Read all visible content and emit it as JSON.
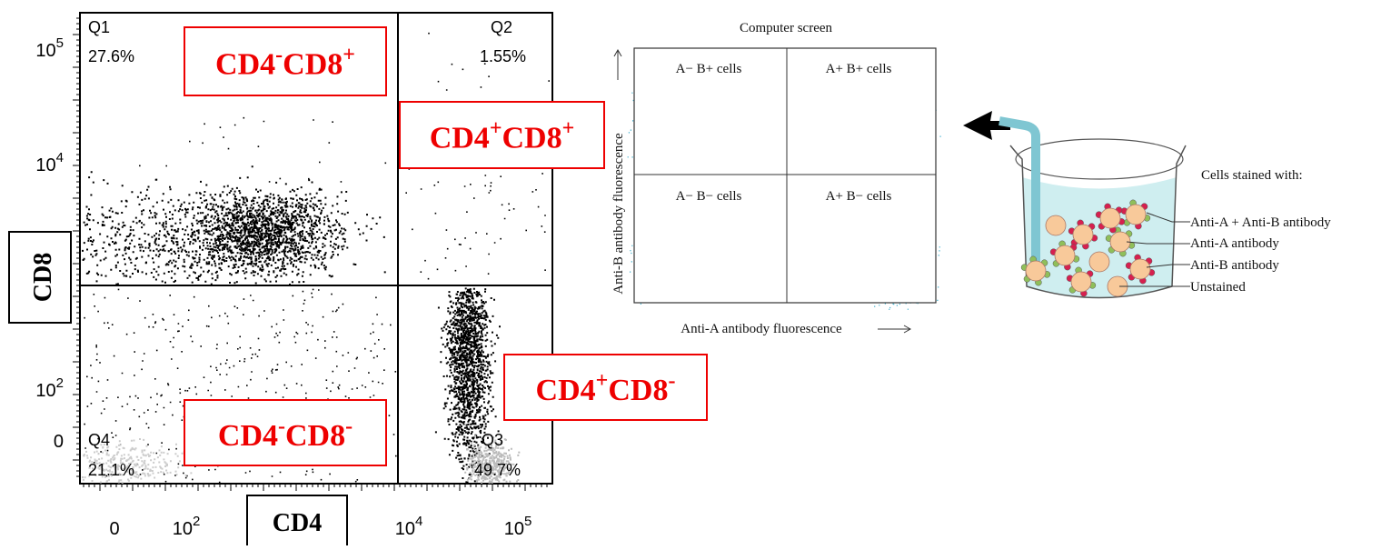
{
  "plot": {
    "quadrants": [
      {
        "name": "Q1",
        "percent": "27.6%"
      },
      {
        "name": "Q2",
        "percent": "1.55%"
      },
      {
        "name": "Q3",
        "percent": "49.7%"
      },
      {
        "name": "Q4",
        "percent": "21.1%"
      }
    ],
    "y_ticks": [
      {
        "base": "10",
        "exp": "5"
      },
      {
        "base": "10",
        "exp": "4"
      },
      {
        "base": "10",
        "exp": "2"
      },
      {
        "base": "0"
      }
    ],
    "x_ticks": [
      {
        "base": "0"
      },
      {
        "base": "10",
        "exp": "2"
      },
      {
        "base": "10",
        "exp": "4"
      },
      {
        "base": "10",
        "exp": "5"
      }
    ],
    "y_label": "CD8",
    "x_label": "CD4",
    "populations": [
      [
        "CD4",
        "-",
        "CD8",
        "+"
      ],
      [
        "CD4",
        "+",
        "CD8",
        "+"
      ],
      [
        "CD4",
        "+",
        "CD8",
        "-"
      ],
      [
        "CD4",
        "-",
        "CD8",
        "-"
      ]
    ]
  },
  "screen": {
    "title": "Computer screen",
    "cells": [
      "A− B+ cells",
      "A+ B+ cells",
      "A− B− cells",
      "A+ B− cells"
    ],
    "y_label": "Anti-B antibody fluorescence",
    "x_label": "Anti-A antibody fluorescence"
  },
  "beaker": {
    "title": "Cells stained with:",
    "labels": [
      "Anti-A + Anti-B antibody",
      "Anti-A antibody",
      "Anti-B antibody",
      "Unstained"
    ]
  }
}
